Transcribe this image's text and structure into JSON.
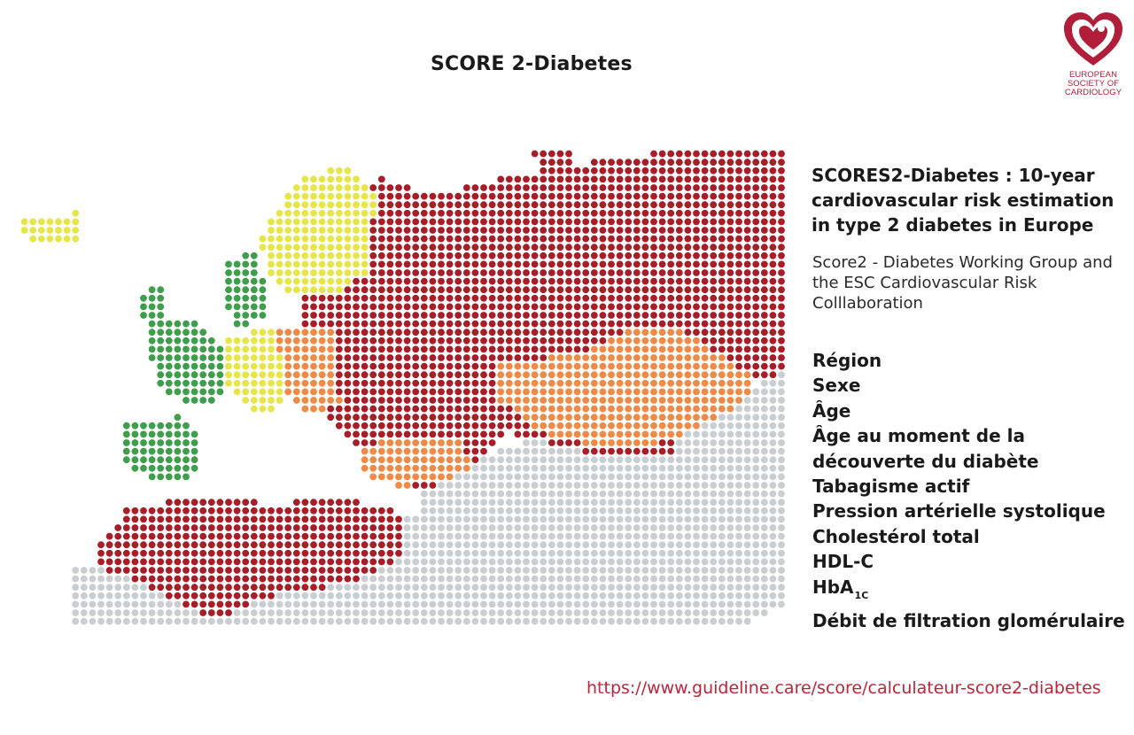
{
  "title": "SCORE 2-Diabetes",
  "logo": {
    "line1": "European",
    "line2": "Society of",
    "line3": "Cardiology",
    "color": "#b01e3a",
    "icon": "heart-logo-icon"
  },
  "panel": {
    "heading": "SCORES2-Diabetes : 10-year cardiovascular risk estimation in type 2 diabetes in Europe",
    "subheading": "Score2 - Diabetes Working Group and the ESC Cardiovascular Risk Colllaboration"
  },
  "variables": [
    "Région",
    "Sexe",
    "Âge",
    "Âge au moment de la",
    "découverte du diabète",
    "Tabagisme actif",
    "Pression artérielle systolique",
    "Cholestérol total",
    "HDL-C",
    "HbA",
    "Débit de filtration glomérulaire"
  ],
  "hba1c_subscript": "1C",
  "url": "https://www.guideline.care/score/calculateur-score2-diabetes",
  "map_colors": {
    "very_high": "#a81e28",
    "high": "#f08a46",
    "moderate": "#e6e64a",
    "low": "#3e9e4c",
    "no_data": "#c8ced2"
  }
}
